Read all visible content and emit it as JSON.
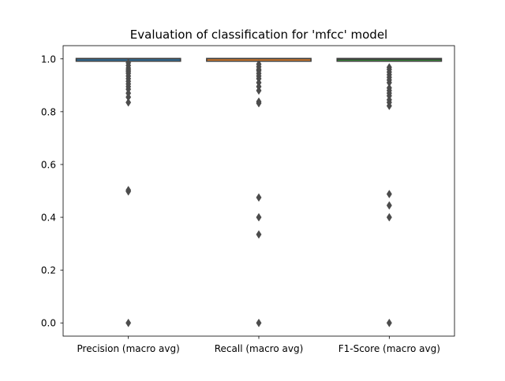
{
  "chart_data": {
    "type": "box",
    "title": "Evaluation of classification for 'mfcc' model",
    "xlabel": "",
    "ylabel": "",
    "categories": [
      "Precision (macro avg)",
      "Recall (macro avg)",
      "F1-Score (macro avg)"
    ],
    "ylim": [
      -0.05,
      1.05
    ],
    "yticks": [
      0.0,
      0.2,
      0.4,
      0.6,
      0.8,
      1.0
    ],
    "ytick_labels": [
      "0.0",
      "0.2",
      "0.4",
      "0.6",
      "0.8",
      "1.0"
    ],
    "grid": false,
    "legend": "none",
    "boxes": [
      {
        "category": "Precision (macro avg)",
        "q1": 0.997,
        "median": 1.0,
        "q3": 1.0,
        "whisker_low": 0.993,
        "whisker_high": 1.0,
        "color": "#3274a1",
        "outliers": [
          0.985,
          0.975,
          0.965,
          0.958,
          0.952,
          0.945,
          0.935,
          0.925,
          0.915,
          0.905,
          0.895,
          0.885,
          0.87,
          0.855,
          0.835,
          0.503,
          0.498,
          0.0
        ]
      },
      {
        "category": "Recall (macro avg)",
        "q1": 0.997,
        "median": 1.0,
        "q3": 1.0,
        "whisker_low": 0.993,
        "whisker_high": 1.0,
        "color": "#e1812c",
        "outliers": [
          0.98,
          0.97,
          0.96,
          0.955,
          0.945,
          0.935,
          0.925,
          0.91,
          0.895,
          0.88,
          0.838,
          0.832,
          0.475,
          0.4,
          0.335,
          0.0
        ]
      },
      {
        "category": "F1-Score (macro avg)",
        "q1": 0.993,
        "median": 0.998,
        "q3": 1.0,
        "whisker_low": 0.99,
        "whisker_high": 1.0,
        "color": "#3a923a",
        "outliers": [
          0.968,
          0.96,
          0.95,
          0.94,
          0.93,
          0.92,
          0.91,
          0.89,
          0.88,
          0.87,
          0.86,
          0.845,
          0.835,
          0.822,
          0.488,
          0.445,
          0.4,
          0.0
        ]
      }
    ],
    "outlier_color": "#4c4c4c"
  }
}
